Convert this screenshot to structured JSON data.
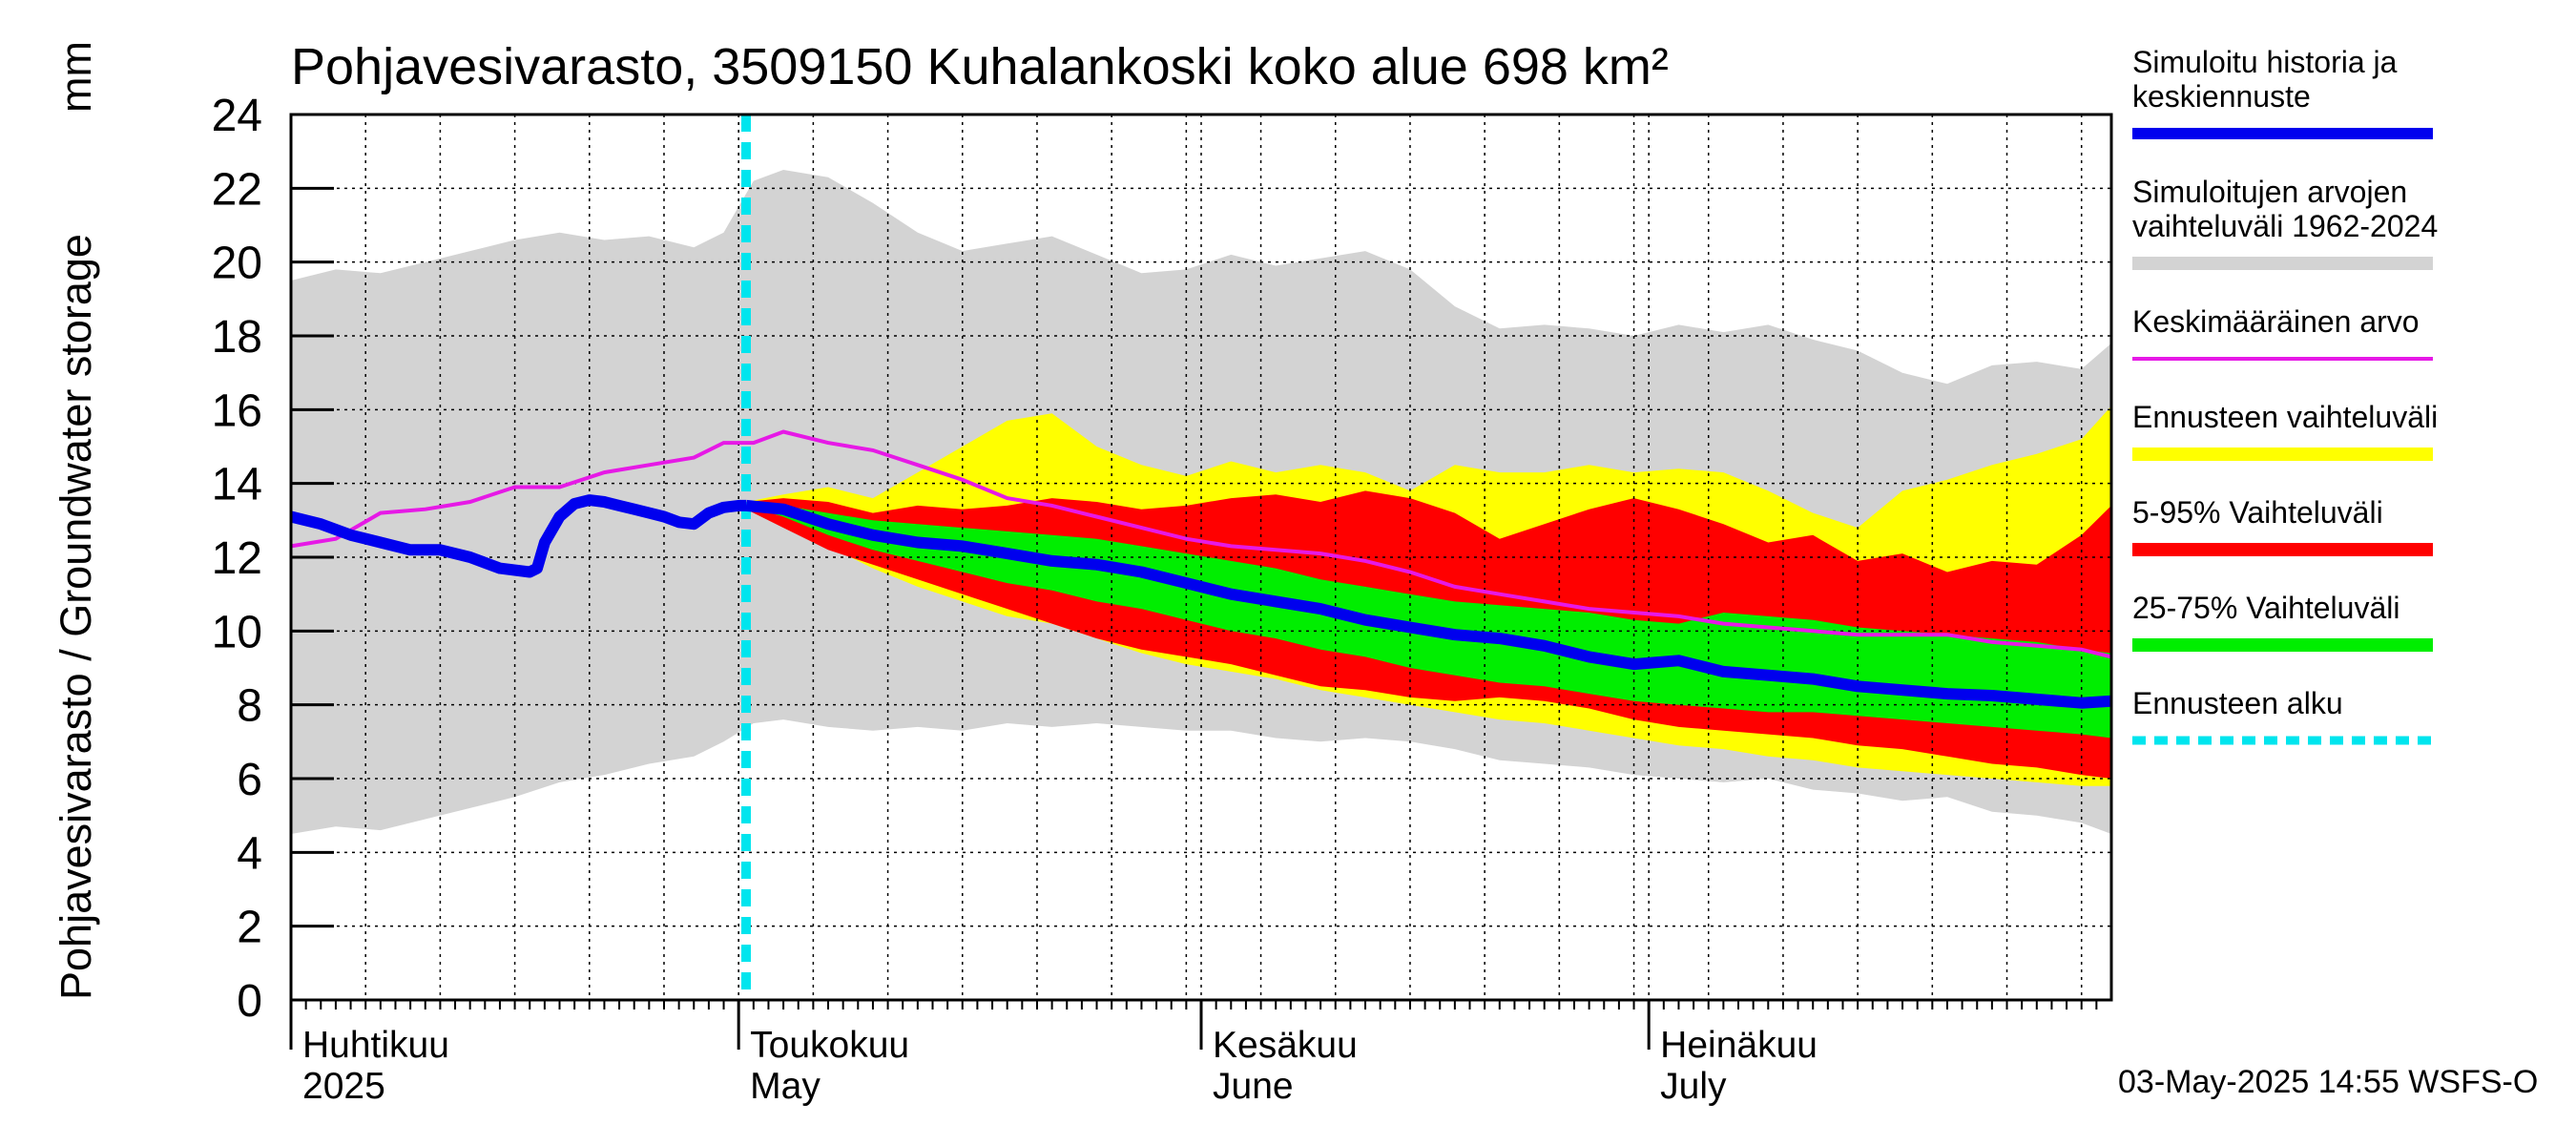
{
  "chart_data": {
    "type": "area",
    "title": "Pohjavesivarasto, 3509150 Kuhalankoski koko alue 698 km²",
    "ylabel": "Pohjavesivarasto / Groundwater storage",
    "yunit": "mm",
    "ylim": [
      0,
      24
    ],
    "yticks": [
      0,
      2,
      4,
      6,
      8,
      10,
      12,
      14,
      16,
      18,
      20,
      22,
      24
    ],
    "x_unit": "days since 2025-03-31",
    "xlim": [
      0,
      122
    ],
    "grid": true,
    "month_labels": [
      {
        "day": 0,
        "line1": "Huhtikuu",
        "line2": "2025"
      },
      {
        "day": 30,
        "line1": "Toukokuu",
        "line2": "May"
      },
      {
        "day": 61,
        "line1": "Kesäkuu",
        "line2": "June"
      },
      {
        "day": 91,
        "line1": "Heinäkuu",
        "line2": "July"
      }
    ],
    "forecast_start_day": 30.5,
    "legend": [
      {
        "key": "history",
        "label": "Simuloitu historia ja keskiennuste",
        "color": "#0000ee",
        "style": "line-thick"
      },
      {
        "key": "range",
        "label": "Simuloitujen arvojen vaihteluväli 1962-2024",
        "color": "#d3d3d3",
        "style": "band"
      },
      {
        "key": "mean",
        "label": "Keskimääräinen arvo",
        "color": "#e619e6",
        "style": "line"
      },
      {
        "key": "fc_range",
        "label": "Ennusteen vaihteluväli",
        "color": "#ffff00",
        "style": "band"
      },
      {
        "key": "p5_95",
        "label": "5-95% Vaihteluväli",
        "color": "#ff0000",
        "style": "band"
      },
      {
        "key": "p25_75",
        "label": "25-75% Vaihteluväli",
        "color": "#00ee00",
        "style": "band"
      },
      {
        "key": "fc_start",
        "label": "Ennusteen alku",
        "color": "#00e5ee",
        "style": "dashed"
      }
    ],
    "series": {
      "range_upper": {
        "x": [
          0,
          3,
          6,
          9,
          12,
          15,
          18,
          21,
          24,
          27,
          29,
          31,
          33,
          36,
          39,
          42,
          45,
          48,
          51,
          54,
          57,
          60,
          63,
          66,
          69,
          72,
          75,
          78,
          81,
          84,
          87,
          90,
          93,
          96,
          99,
          102,
          105,
          108,
          111,
          114,
          117,
          120,
          122
        ],
        "y": [
          19.5,
          19.8,
          19.7,
          20,
          20.3,
          20.6,
          20.8,
          20.6,
          20.7,
          20.4,
          20.8,
          22.2,
          22.5,
          22.3,
          21.6,
          20.8,
          20.3,
          20.5,
          20.7,
          20.2,
          19.7,
          19.8,
          20.2,
          19.9,
          20.1,
          20.3,
          19.8,
          18.8,
          18.2,
          18.3,
          18.2,
          18,
          18.3,
          18.1,
          18.3,
          17.9,
          17.6,
          17,
          16.7,
          17.2,
          17.3,
          17.1,
          17.8
        ]
      },
      "range_lower": {
        "x": [
          0,
          3,
          6,
          9,
          12,
          15,
          18,
          21,
          24,
          27,
          29,
          31,
          33,
          36,
          39,
          42,
          45,
          48,
          51,
          54,
          57,
          60,
          63,
          66,
          69,
          72,
          75,
          78,
          81,
          84,
          87,
          90,
          93,
          96,
          99,
          102,
          105,
          108,
          111,
          114,
          117,
          120,
          122
        ],
        "y": [
          4.5,
          4.7,
          4.6,
          4.9,
          5.2,
          5.5,
          5.9,
          6.1,
          6.4,
          6.6,
          7,
          7.5,
          7.6,
          7.4,
          7.3,
          7.4,
          7.3,
          7.5,
          7.4,
          7.5,
          7.4,
          7.3,
          7.3,
          7.1,
          7,
          7.1,
          7,
          6.8,
          6.5,
          6.4,
          6.3,
          6.1,
          6,
          5.9,
          6,
          5.7,
          5.6,
          5.4,
          5.5,
          5.1,
          5,
          4.8,
          4.5
        ]
      },
      "mean": {
        "x": [
          0,
          3,
          6,
          9,
          12,
          15,
          18,
          21,
          24,
          27,
          29,
          31,
          33,
          36,
          39,
          42,
          45,
          48,
          51,
          54,
          57,
          60,
          63,
          66,
          69,
          72,
          75,
          78,
          81,
          84,
          87,
          90,
          93,
          96,
          99,
          102,
          105,
          108,
          111,
          114,
          117,
          120,
          122
        ],
        "y": [
          12.3,
          12.5,
          13.2,
          13.3,
          13.5,
          13.9,
          13.9,
          14.3,
          14.5,
          14.7,
          15.1,
          15.1,
          15.4,
          15.1,
          14.9,
          14.5,
          14.1,
          13.6,
          13.4,
          13.1,
          12.8,
          12.5,
          12.3,
          12.2,
          12.1,
          11.9,
          11.6,
          11.2,
          11,
          10.8,
          10.6,
          10.5,
          10.4,
          10.2,
          10.1,
          10,
          9.9,
          9.9,
          9.9,
          9.7,
          9.6,
          9.5,
          9.3
        ]
      },
      "history": {
        "x": [
          0,
          2,
          4,
          6,
          8,
          10,
          12,
          14,
          16,
          16.5,
          17,
          18,
          19,
          20,
          21,
          22,
          23,
          24,
          25,
          26,
          27,
          28,
          29,
          30,
          30.5
        ],
        "y": [
          13.1,
          12.9,
          12.6,
          12.4,
          12.2,
          12.2,
          12.0,
          11.7,
          11.6,
          11.7,
          12.4,
          13.1,
          13.45,
          13.55,
          13.5,
          13.4,
          13.3,
          13.2,
          13.1,
          12.95,
          12.9,
          13.2,
          13.35,
          13.4,
          13.4
        ]
      },
      "forecast_mean": {
        "x": [
          30.5,
          33,
          36,
          39,
          42,
          45,
          48,
          51,
          54,
          57,
          60,
          63,
          66,
          69,
          72,
          75,
          78,
          81,
          84,
          87,
          90,
          93,
          96,
          99,
          102,
          105,
          108,
          111,
          114,
          117,
          120,
          122
        ],
        "y": [
          13.4,
          13.3,
          12.9,
          12.6,
          12.4,
          12.3,
          12.1,
          11.9,
          11.8,
          11.6,
          11.3,
          11.0,
          10.8,
          10.6,
          10.3,
          10.1,
          9.9,
          9.8,
          9.6,
          9.3,
          9.1,
          9.2,
          8.9,
          8.8,
          8.7,
          8.5,
          8.4,
          8.3,
          8.25,
          8.15,
          8.05,
          8.1
        ]
      },
      "fc_upper": {
        "x": [
          30.5,
          33,
          36,
          39,
          42,
          45,
          48,
          51,
          54,
          57,
          60,
          63,
          66,
          69,
          72,
          75,
          78,
          81,
          84,
          87,
          90,
          93,
          96,
          99,
          102,
          105,
          108,
          111,
          114,
          117,
          120,
          122
        ],
        "y": [
          13.5,
          13.7,
          13.9,
          13.6,
          14.3,
          15,
          15.7,
          15.9,
          15,
          14.5,
          14.2,
          14.6,
          14.3,
          14.5,
          14.3,
          13.8,
          14.5,
          14.3,
          14.3,
          14.5,
          14.3,
          14.4,
          14.3,
          13.8,
          13.2,
          12.8,
          13.8,
          14.1,
          14.5,
          14.8,
          15.2,
          16.1
        ]
      },
      "fc_lower": {
        "x": [
          30.5,
          33,
          36,
          39,
          42,
          45,
          48,
          51,
          54,
          57,
          60,
          63,
          66,
          69,
          72,
          75,
          78,
          81,
          84,
          87,
          90,
          93,
          96,
          99,
          102,
          105,
          108,
          111,
          114,
          117,
          120,
          122
        ],
        "y": [
          13.3,
          12.9,
          12.3,
          11.7,
          11.2,
          10.8,
          10.4,
          10.2,
          9.8,
          9.4,
          9.1,
          8.9,
          8.7,
          8.4,
          8.2,
          8,
          7.8,
          7.6,
          7.5,
          7.3,
          7.1,
          6.9,
          6.8,
          6.6,
          6.5,
          6.3,
          6.2,
          6.1,
          6,
          5.9,
          5.8,
          5.8
        ]
      },
      "p95": {
        "x": [
          30.5,
          33,
          36,
          39,
          42,
          45,
          48,
          51,
          54,
          57,
          60,
          63,
          66,
          69,
          72,
          75,
          78,
          81,
          84,
          87,
          90,
          93,
          96,
          99,
          102,
          105,
          108,
          111,
          114,
          117,
          120,
          122
        ],
        "y": [
          13.5,
          13.6,
          13.5,
          13.2,
          13.4,
          13.3,
          13.4,
          13.6,
          13.5,
          13.3,
          13.4,
          13.6,
          13.7,
          13.5,
          13.8,
          13.6,
          13.2,
          12.5,
          12.9,
          13.3,
          13.6,
          13.3,
          12.9,
          12.4,
          12.6,
          11.9,
          12.1,
          11.6,
          11.9,
          11.8,
          12.6,
          13.4
        ]
      },
      "p5": {
        "x": [
          30.5,
          33,
          36,
          39,
          42,
          45,
          48,
          51,
          54,
          57,
          60,
          63,
          66,
          69,
          72,
          75,
          78,
          81,
          84,
          87,
          90,
          93,
          96,
          99,
          102,
          105,
          108,
          111,
          114,
          117,
          120,
          122
        ],
        "y": [
          13.3,
          12.8,
          12.2,
          11.8,
          11.4,
          11,
          10.6,
          10.2,
          9.8,
          9.5,
          9.3,
          9.1,
          8.8,
          8.5,
          8.4,
          8.2,
          8.1,
          8.2,
          8.1,
          7.9,
          7.6,
          7.4,
          7.3,
          7.2,
          7.1,
          6.9,
          6.8,
          6.6,
          6.4,
          6.3,
          6.1,
          6
        ]
      },
      "p75": {
        "x": [
          30.5,
          33,
          36,
          39,
          42,
          45,
          48,
          51,
          54,
          57,
          60,
          63,
          66,
          69,
          72,
          75,
          78,
          81,
          84,
          87,
          90,
          93,
          96,
          99,
          102,
          105,
          108,
          111,
          114,
          117,
          120,
          122
        ],
        "y": [
          13.4,
          13.4,
          13.2,
          13,
          12.9,
          12.8,
          12.7,
          12.6,
          12.5,
          12.3,
          12.1,
          11.9,
          11.7,
          11.4,
          11.2,
          11,
          10.8,
          10.7,
          10.6,
          10.5,
          10.3,
          10.2,
          10.5,
          10.4,
          10.3,
          10.1,
          10,
          9.9,
          9.8,
          9.7,
          9.5,
          9.4
        ]
      },
      "p25": {
        "x": [
          30.5,
          33,
          36,
          39,
          42,
          45,
          48,
          51,
          54,
          57,
          60,
          63,
          66,
          69,
          72,
          75,
          78,
          81,
          84,
          87,
          90,
          93,
          96,
          99,
          102,
          105,
          108,
          111,
          114,
          117,
          120,
          122
        ],
        "y": [
          13.4,
          13.1,
          12.6,
          12.2,
          11.9,
          11.6,
          11.3,
          11.1,
          10.8,
          10.6,
          10.3,
          10,
          9.8,
          9.5,
          9.3,
          9,
          8.8,
          8.6,
          8.5,
          8.3,
          8.1,
          8,
          7.9,
          7.8,
          7.8,
          7.7,
          7.6,
          7.5,
          7.4,
          7.3,
          7.2,
          7.1
        ]
      }
    }
  },
  "footer": {
    "timestamp": "03-May-2025 14:55 WSFS-O"
  }
}
